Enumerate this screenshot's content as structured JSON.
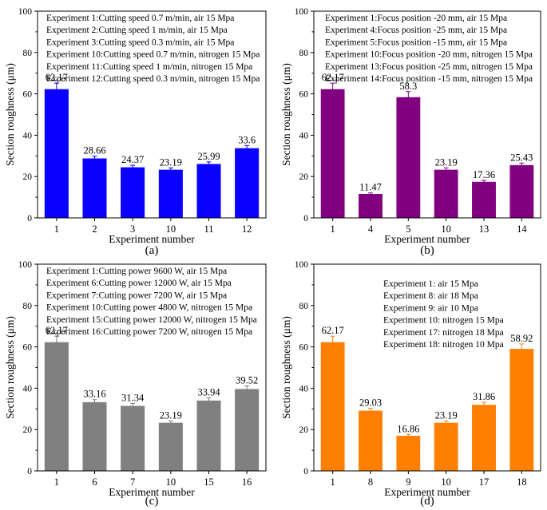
{
  "figure": {
    "panels": [
      {
        "label": "(a)",
        "color": "#0a00ff"
      },
      {
        "label": "(b)",
        "color": "#800080"
      },
      {
        "label": "(c)",
        "color": "#808080"
      },
      {
        "label": "(d)",
        "color": "#ff8000"
      }
    ]
  },
  "chart_data": [
    {
      "type": "bar",
      "panel": "(a)",
      "categories": [
        "1",
        "2",
        "3",
        "10",
        "11",
        "12"
      ],
      "values": [
        62.17,
        28.66,
        24.37,
        23.19,
        25.99,
        33.6
      ],
      "value_labels": [
        "62.17",
        "28.66",
        "24.37",
        "23.19",
        "25.99",
        "33.6"
      ],
      "error": [
        3.0,
        1.2,
        1.1,
        1.0,
        1.1,
        1.4
      ],
      "xlabel": "Experiment number",
      "ylabel": "Section roughness (μm)",
      "ylim": [
        0,
        100
      ],
      "yticks": [
        0,
        20,
        40,
        60,
        80,
        100
      ],
      "legend_lines": [
        "Experiment 1:Cutting speed 0.7 m/min, air 15 Mpa",
        "Experiment 2:Cutting speed 1 m/min, air 15 Mpa",
        "Experiment 3:Cutting speed 0.3 m/min, air 15 Mpa",
        "Experiment 10:Cutting speed 0.7 m/min, nitrogen 15 Mpa",
        "Experiment 11:Cutting speed 1 m/min, nitrogen 15 Mpa",
        "Experiment 12:Cutting speed 0.3 m/min, nitrogen 15 Mpa"
      ]
    },
    {
      "type": "bar",
      "panel": "(b)",
      "categories": [
        "1",
        "4",
        "5",
        "10",
        "13",
        "14"
      ],
      "values": [
        62.17,
        11.47,
        58.3,
        23.19,
        17.36,
        25.43
      ],
      "value_labels": [
        "62.17",
        "11.47",
        "58.3",
        "23.19",
        "17.36",
        "25.43"
      ],
      "error": [
        3.0,
        0.6,
        2.8,
        1.0,
        0.8,
        1.1
      ],
      "xlabel": "Experiment number",
      "ylabel": "Section roughness (μm)",
      "ylim": [
        0,
        100
      ],
      "yticks": [
        0,
        20,
        40,
        60,
        80,
        100
      ],
      "legend_lines": [
        "Experiment 1:Focus position -20 mm, air 15 Mpa",
        "Experiment 4:Focus position -25 mm, air 15 Mpa",
        "Experiment 5:Focus position -15 mm, air 15 Mpa",
        "Experiment 10:Focus position -20 mm, nitrogen 15 Mpa",
        "Experiment 13:Focus position -25 mm, nitrogen 15 Mpa",
        "Experiment 14:Focus position -15 mm, nitrogen 15 Mpa"
      ]
    },
    {
      "type": "bar",
      "panel": "(c)",
      "categories": [
        "1",
        "6",
        "7",
        "10",
        "15",
        "16"
      ],
      "values": [
        62.17,
        33.16,
        31.34,
        23.19,
        33.94,
        39.52
      ],
      "value_labels": [
        "62.17",
        "33.16",
        "31.34",
        "23.19",
        "33.94",
        "39.52"
      ],
      "error": [
        3.0,
        1.3,
        1.3,
        1.0,
        1.4,
        1.6
      ],
      "xlabel": "Experiment number",
      "ylabel": "Section roughness (μm)",
      "ylim": [
        0,
        100
      ],
      "yticks": [
        0,
        20,
        40,
        60,
        80,
        100
      ],
      "legend_lines": [
        "Experiment 1:Cutting power 9600 W, air 15 Mpa",
        "Experiment 6:Cutting power 12000 W, air 15 Mpa",
        "Experiment 7:Cutting power 7200 W, air 15 Mpa",
        "Experiment 10:Cutting power 4800 W, nitrogen 15 Mpa",
        "Experiment 15:Cutting power 12000 W, nitrogen 15 Mpa",
        "Experiment 16:Cutting power 7200 W, nitrogen 15 Mpa"
      ]
    },
    {
      "type": "bar",
      "panel": "(d)",
      "categories": [
        "1",
        "8",
        "9",
        "10",
        "17",
        "18"
      ],
      "values": [
        62.17,
        29.03,
        16.86,
        23.19,
        31.86,
        58.92
      ],
      "value_labels": [
        "62.17",
        "29.03",
        "16.86",
        "23.19",
        "31.86",
        "58.92"
      ],
      "error": [
        3.0,
        1.2,
        0.8,
        1.0,
        1.3,
        2.5
      ],
      "xlabel": "Experiment number",
      "ylabel": "Section roughness (μm)",
      "ylim": [
        0,
        100
      ],
      "yticks": [
        0,
        20,
        40,
        60,
        80,
        100
      ],
      "legend_lines": [
        "Experiment 1: air 15 Mpa",
        "Experiment 8: air 18 Mpa",
        "Experiment 9: air 10 Mpa",
        "Experiment 10: nitrogen 15 Mpa",
        "Experiment 17: nitrogen 18 Mpa",
        "Experiment 18: nitrogen 10 Mpa"
      ]
    }
  ]
}
